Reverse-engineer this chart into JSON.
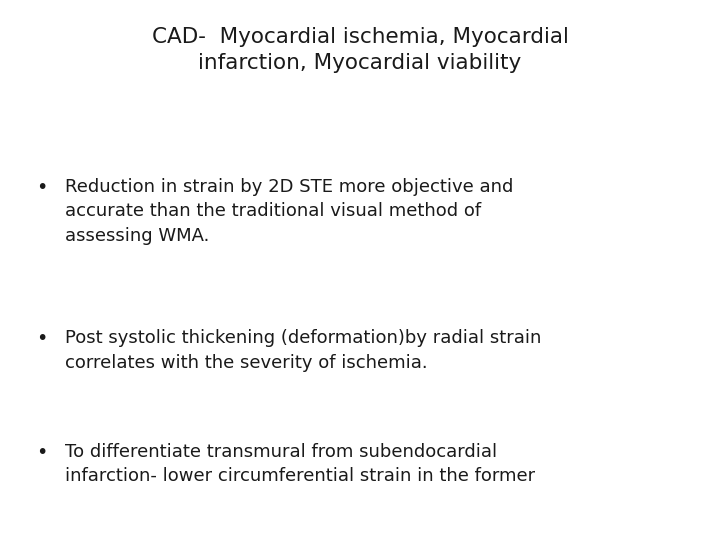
{
  "title_line1": "CAD-  Myocardial ischemia, Myocardial",
  "title_line2": "infarction, Myocardial viability",
  "bullet1_line1": "Reduction in strain by 2D STE more objective and",
  "bullet1_line2": "accurate than the traditional visual method of",
  "bullet1_line3": "assessing WMA.",
  "bullet2_line1": "Post systolic thickening (deformation)by radial strain",
  "bullet2_line2": "correlates with the severity of ischemia.",
  "bullet3_line1": "To differentiate transmural from subendocardial",
  "bullet3_line2": "infarction- lower circumferential strain in the former",
  "background_color": "#ffffff",
  "text_color": "#1a1a1a",
  "title_fontsize": 15.5,
  "bullet_fontsize": 13,
  "bullet_symbol": "•",
  "font_family": "DejaVu Sans"
}
